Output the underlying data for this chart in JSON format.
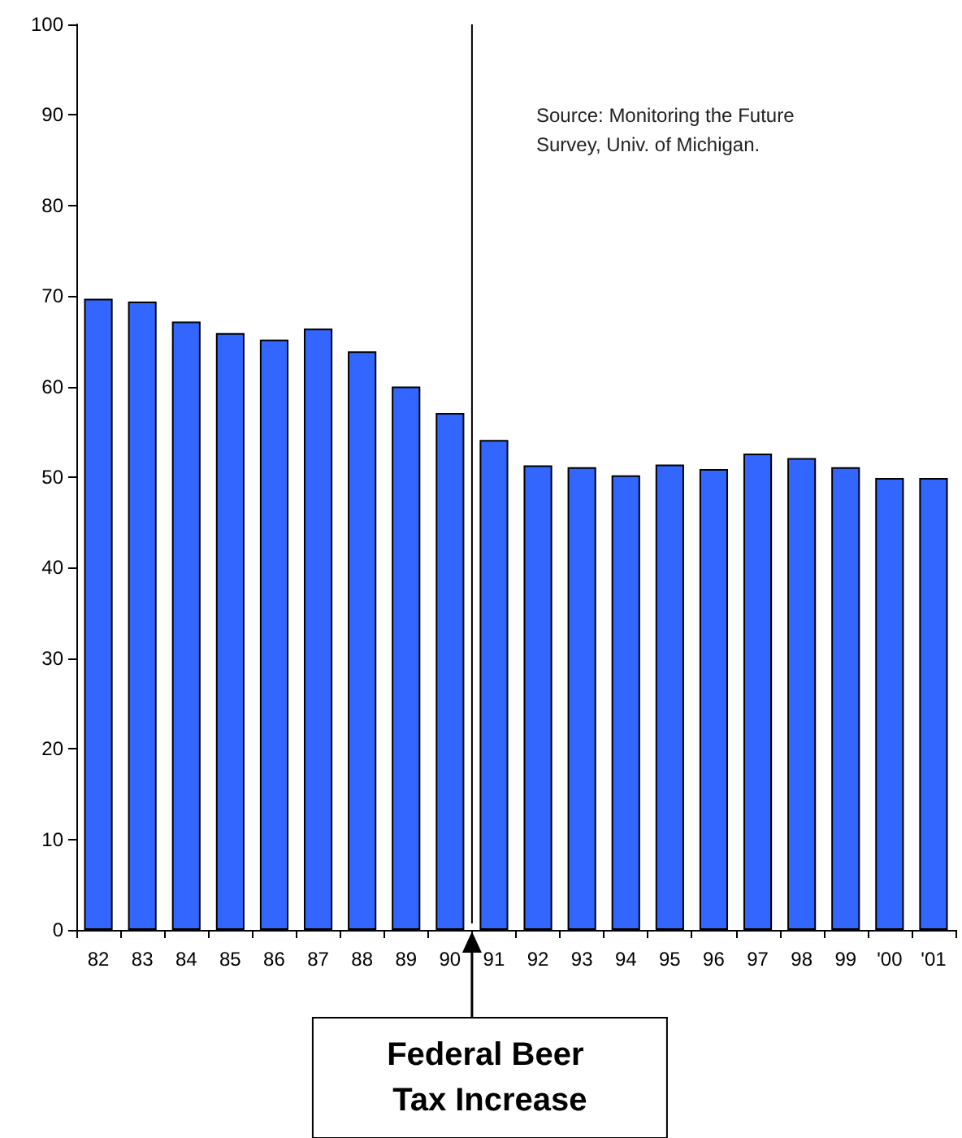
{
  "chart_data": {
    "type": "bar",
    "categories": [
      "82",
      "83",
      "84",
      "85",
      "86",
      "87",
      "88",
      "89",
      "90",
      "91",
      "92",
      "93",
      "94",
      "95",
      "96",
      "97",
      "98",
      "99",
      "'00",
      "'01"
    ],
    "values": [
      69.7,
      69.4,
      67.2,
      65.9,
      65.2,
      66.4,
      63.9,
      60.0,
      57.1,
      54.1,
      51.3,
      51.1,
      50.2,
      51.4,
      50.9,
      52.6,
      52.1,
      51.1,
      49.9,
      49.9
    ],
    "color": "#3366ff",
    "ylim": [
      0,
      100
    ],
    "yticks": [
      0,
      10,
      20,
      30,
      40,
      50,
      60,
      70,
      80,
      90,
      100
    ],
    "grid": false,
    "annotations": [
      "Source: Monitoring the Future Survey, Univ. of Michigan.",
      "Federal Beer Tax Increase"
    ]
  }
}
